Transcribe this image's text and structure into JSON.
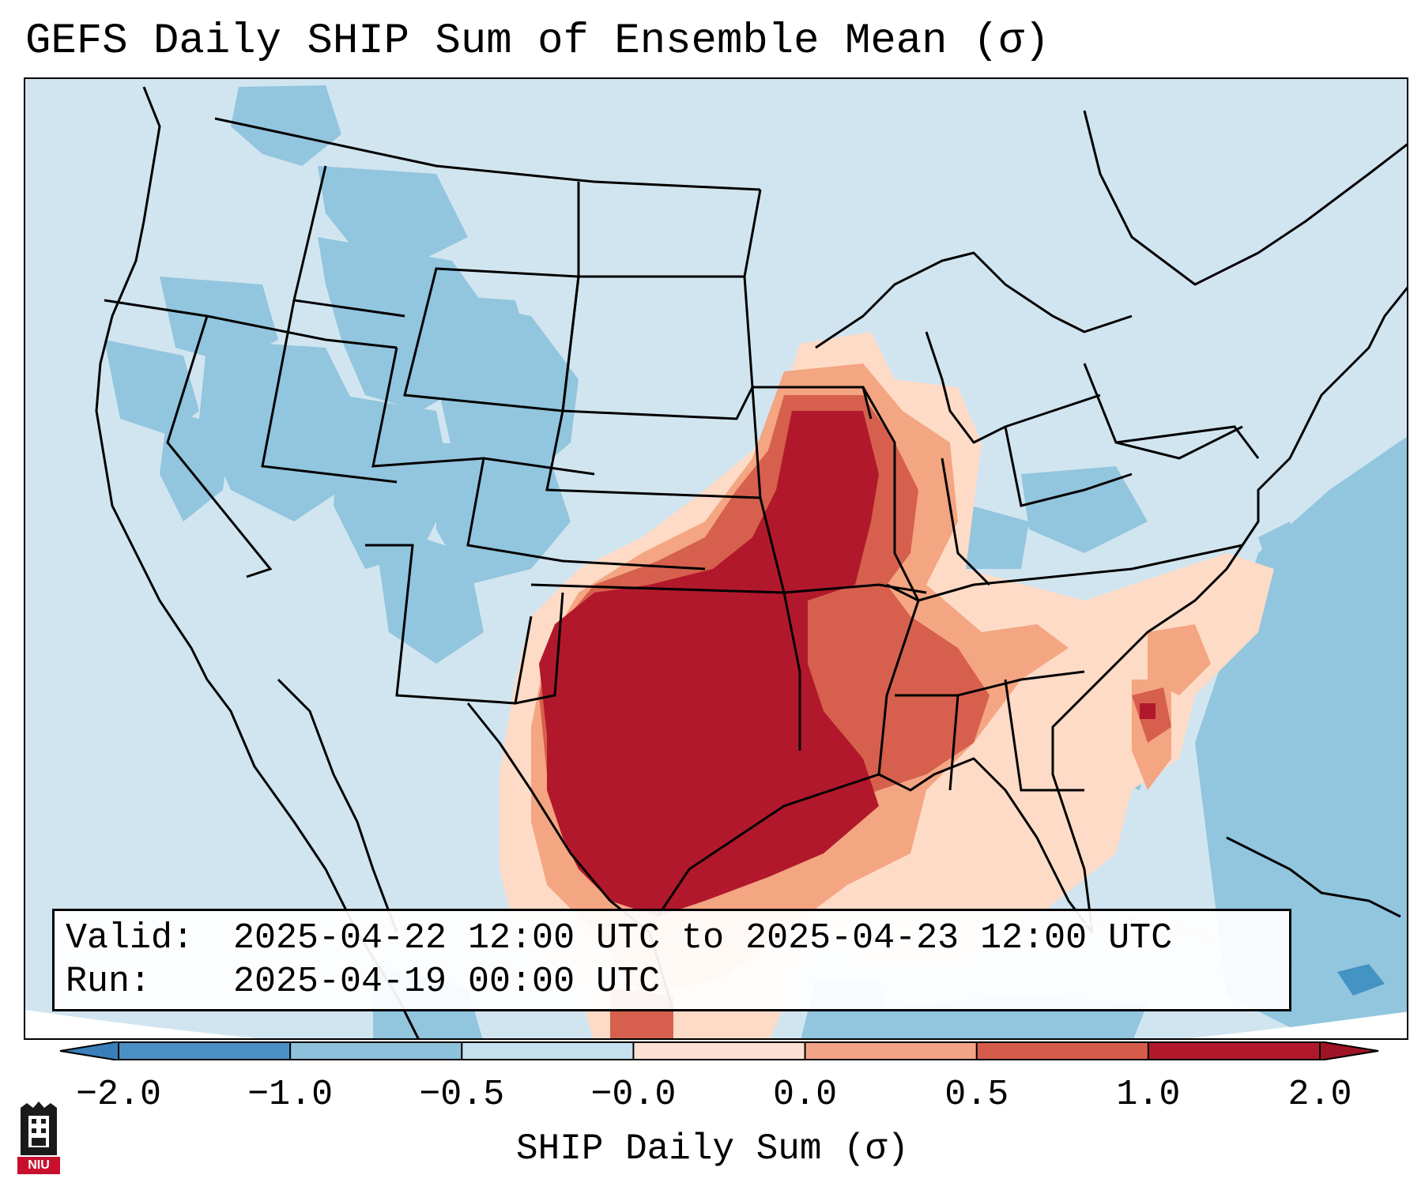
{
  "title": "GEFS Daily SHIP Sum of Ensemble Mean (σ)",
  "info": {
    "valid_label": "Valid:",
    "valid_value": "2025-04-22 12:00 UTC to 2025-04-23 12:00 UTC",
    "run_label": "Run:",
    "run_value": "2025-04-19 00:00 UTC"
  },
  "colorbar": {
    "label": "SHIP Daily Sum (σ)",
    "ticks": [
      "−2.0",
      "−1.0",
      "−0.5",
      "−0.0",
      "0.0",
      "0.5",
      "1.0",
      "2.0"
    ],
    "colors": [
      "#4b90c4",
      "#8ec1dc",
      "#c5e0ee",
      "#fbe0d3",
      "#f3a486",
      "#d55c4a",
      "#b1182b"
    ],
    "extend": "both"
  },
  "logo": {
    "text": "NIU",
    "color": "#c8102e"
  },
  "palette": {
    "background": "#d1e5f0",
    "ocean_deep": "#92c5de",
    "neg_mid": "#92c5de",
    "pos_light": "#fddbc7",
    "pos_mid": "#f4a582",
    "pos_high": "#d6604d",
    "pos_max": "#b2182b"
  }
}
